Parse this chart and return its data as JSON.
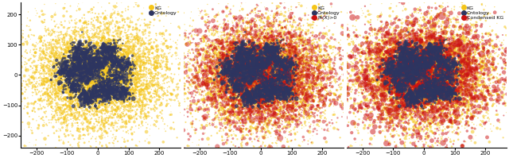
{
  "n_kg": 8000,
  "n_ontology": 2000,
  "n_prob": 4000,
  "n_condensed": 3000,
  "kg_color": "#F5C518",
  "ontology_color": "#2d3561",
  "prob_color": "#cc1111",
  "condensed_color": "#cc1111",
  "xlim": [
    -250,
    270
  ],
  "ylim": [
    -240,
    240
  ],
  "xticks": [
    -200,
    -100,
    0,
    100,
    200
  ],
  "yticks": [
    -200,
    -100,
    0,
    100,
    200
  ],
  "seed": 12345,
  "legend1": [
    "KG",
    "Ontology"
  ],
  "legend2": [
    "KG",
    "Ontology",
    "Pr(X)>0"
  ],
  "legend3": [
    "KG",
    "Ontology",
    "Condensed KG"
  ]
}
